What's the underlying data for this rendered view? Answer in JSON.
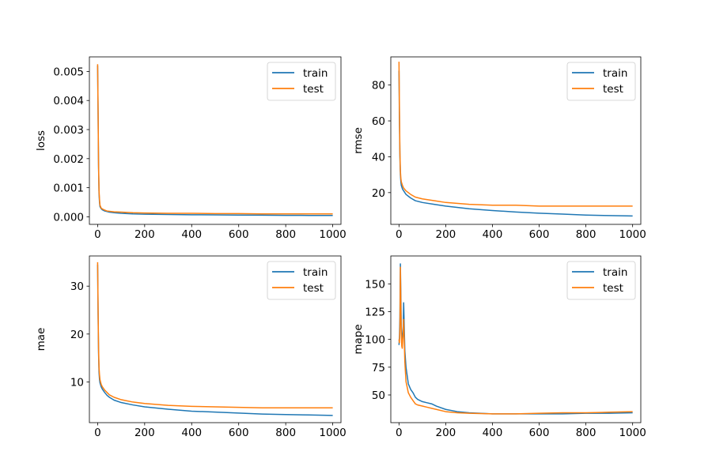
{
  "figure": {
    "background": "#ffffff"
  },
  "colors": {
    "train": "#1f77b4",
    "test": "#ff7f0e",
    "axis": "#000000"
  },
  "chart_data": [
    {
      "type": "line",
      "ylabel": "loss",
      "xlim": [
        -35,
        1035
      ],
      "ylim": [
        -0.00026,
        0.0055
      ],
      "xticks": [
        0,
        200,
        400,
        600,
        800,
        1000
      ],
      "xtick_labels": [
        "0",
        "200",
        "400",
        "600",
        "800",
        "1000"
      ],
      "yticks": [
        0.0,
        0.001,
        0.002,
        0.003,
        0.004,
        0.005
      ],
      "ytick_labels": [
        "0.000",
        "0.001",
        "0.002",
        "0.003",
        "0.004",
        "0.005"
      ],
      "legend": {
        "position": "top-right",
        "entries": [
          "train",
          "test"
        ]
      },
      "series": [
        {
          "name": "train",
          "x": [
            0,
            2,
            4,
            6,
            8,
            10,
            15,
            20,
            30,
            40,
            50,
            70,
            100,
            150,
            200,
            300,
            400,
            500,
            600,
            700,
            800,
            900,
            1000
          ],
          "values": [
            0.0052,
            0.0035,
            0.0017,
            0.0008,
            0.0005,
            0.00035,
            0.00028,
            0.00024,
            0.0002,
            0.00018,
            0.00016,
            0.00014,
            0.00012,
            0.0001,
            9e-05,
            8e-05,
            7e-05,
            6.5e-05,
            6e-05,
            5.5e-05,
            5e-05,
            4.7e-05,
            4.5e-05
          ]
        },
        {
          "name": "test",
          "x": [
            0,
            2,
            4,
            6,
            8,
            10,
            15,
            20,
            30,
            40,
            50,
            70,
            100,
            150,
            200,
            300,
            400,
            500,
            600,
            700,
            800,
            900,
            1000
          ],
          "values": [
            0.00525,
            0.0036,
            0.0018,
            0.0009,
            0.0006,
            0.0004,
            0.0003,
            0.00027,
            0.00023,
            0.0002,
            0.00019,
            0.00017,
            0.00016,
            0.00014,
            0.00013,
            0.00012,
            0.00012,
            0.00011,
            0.00011,
            0.0001,
            0.0001,
            0.0001,
            0.0001
          ]
        }
      ]
    },
    {
      "type": "line",
      "ylabel": "rmse",
      "xlim": [
        -35,
        1035
      ],
      "ylim": [
        2.3,
        95.7
      ],
      "xticks": [
        0,
        200,
        400,
        600,
        800,
        1000
      ],
      "xtick_labels": [
        "0",
        "200",
        "400",
        "600",
        "800",
        "1000"
      ],
      "yticks": [
        20,
        40,
        60,
        80
      ],
      "ytick_labels": [
        "20",
        "40",
        "60",
        "80"
      ],
      "legend": {
        "position": "top-right",
        "entries": [
          "train",
          "test"
        ]
      },
      "series": [
        {
          "name": "train",
          "x": [
            0,
            2,
            4,
            6,
            8,
            10,
            15,
            20,
            30,
            40,
            50,
            70,
            100,
            150,
            200,
            300,
            400,
            500,
            600,
            700,
            800,
            900,
            1000
          ],
          "values": [
            88,
            60,
            40,
            30,
            26,
            24,
            22,
            21,
            19,
            18,
            17,
            15.5,
            14.5,
            13.5,
            12.5,
            11,
            10,
            9.2,
            8.5,
            8,
            7.5,
            7.2,
            7
          ]
        },
        {
          "name": "test",
          "x": [
            0,
            2,
            4,
            6,
            8,
            10,
            15,
            20,
            30,
            40,
            50,
            70,
            100,
            150,
            200,
            300,
            400,
            500,
            600,
            700,
            800,
            900,
            1000
          ],
          "values": [
            93,
            65,
            42,
            32,
            28,
            26,
            24,
            22.5,
            21,
            20,
            19,
            17.5,
            16.5,
            15.5,
            14.5,
            13.5,
            13,
            13,
            12.5,
            12.5,
            12.5,
            12.5,
            12.5
          ]
        }
      ]
    },
    {
      "type": "line",
      "ylabel": "mae",
      "xlim": [
        -35,
        1035
      ],
      "ylim": [
        1.5,
        36.3
      ],
      "xticks": [
        0,
        200,
        400,
        600,
        800,
        1000
      ],
      "xtick_labels": [
        "0",
        "200",
        "400",
        "600",
        "800",
        "1000"
      ],
      "yticks": [
        10,
        20,
        30
      ],
      "ytick_labels": [
        "10",
        "20",
        "30"
      ],
      "legend": {
        "position": "top-right",
        "entries": [
          "train",
          "test"
        ]
      },
      "series": [
        {
          "name": "train",
          "x": [
            0,
            2,
            4,
            6,
            8,
            10,
            15,
            20,
            30,
            40,
            50,
            70,
            100,
            150,
            200,
            300,
            400,
            500,
            600,
            700,
            800,
            900,
            1000
          ],
          "values": [
            34.5,
            24,
            16,
            12,
            10.5,
            9.8,
            9,
            8.5,
            7.8,
            7.2,
            6.8,
            6.2,
            5.7,
            5.2,
            4.8,
            4.3,
            3.9,
            3.7,
            3.5,
            3.3,
            3.2,
            3.1,
            3
          ]
        },
        {
          "name": "test",
          "x": [
            0,
            2,
            4,
            6,
            8,
            10,
            15,
            20,
            30,
            40,
            50,
            70,
            100,
            150,
            200,
            300,
            400,
            500,
            600,
            700,
            800,
            900,
            1000
          ],
          "values": [
            35,
            25,
            17,
            13,
            11.5,
            10.5,
            9.5,
            9,
            8.3,
            7.8,
            7.3,
            6.8,
            6.3,
            5.8,
            5.5,
            5.1,
            4.9,
            4.8,
            4.7,
            4.6,
            4.6,
            4.6,
            4.6
          ]
        }
      ]
    },
    {
      "type": "line",
      "ylabel": "mape",
      "xlim": [
        -35,
        1035
      ],
      "ylim": [
        25.1,
        175.1
      ],
      "xticks": [
        0,
        200,
        400,
        600,
        800,
        1000
      ],
      "xtick_labels": [
        "0",
        "200",
        "400",
        "600",
        "800",
        "1000"
      ],
      "yticks": [
        50,
        75,
        100,
        125,
        150
      ],
      "ytick_labels": [
        "50",
        "75",
        "100",
        "125",
        "150"
      ],
      "legend": {
        "position": "top-right",
        "entries": [
          "train",
          "test"
        ]
      },
      "series": [
        {
          "name": "train",
          "x": [
            0,
            2,
            4,
            6,
            8,
            10,
            12,
            14,
            16,
            18,
            20,
            25,
            30,
            40,
            50,
            60,
            70,
            80,
            100,
            120,
            140,
            160,
            200,
            250,
            300,
            400,
            500,
            600,
            700,
            800,
            900,
            1000
          ],
          "values": [
            95,
            102,
            120,
            168,
            140,
            110,
            100,
            96,
            105,
            112,
            133,
            90,
            75,
            60,
            55,
            52,
            48,
            46,
            44,
            43,
            42,
            40,
            37,
            35,
            34,
            33,
            33,
            33,
            33,
            33.5,
            33.5,
            34
          ]
        },
        {
          "name": "test",
          "x": [
            0,
            2,
            4,
            6,
            8,
            10,
            12,
            14,
            16,
            18,
            20,
            25,
            30,
            40,
            50,
            60,
            70,
            80,
            100,
            120,
            140,
            160,
            200,
            250,
            300,
            400,
            500,
            600,
            700,
            800,
            900,
            1000
          ],
          "values": [
            100,
            97,
            110,
            165,
            128,
            105,
            94,
            92,
            100,
            106,
            118,
            80,
            62,
            52,
            48,
            45,
            42,
            41,
            40,
            39,
            38,
            37,
            35,
            34,
            33.5,
            33,
            33,
            33.5,
            34,
            34,
            34.5,
            35
          ]
        }
      ]
    }
  ]
}
